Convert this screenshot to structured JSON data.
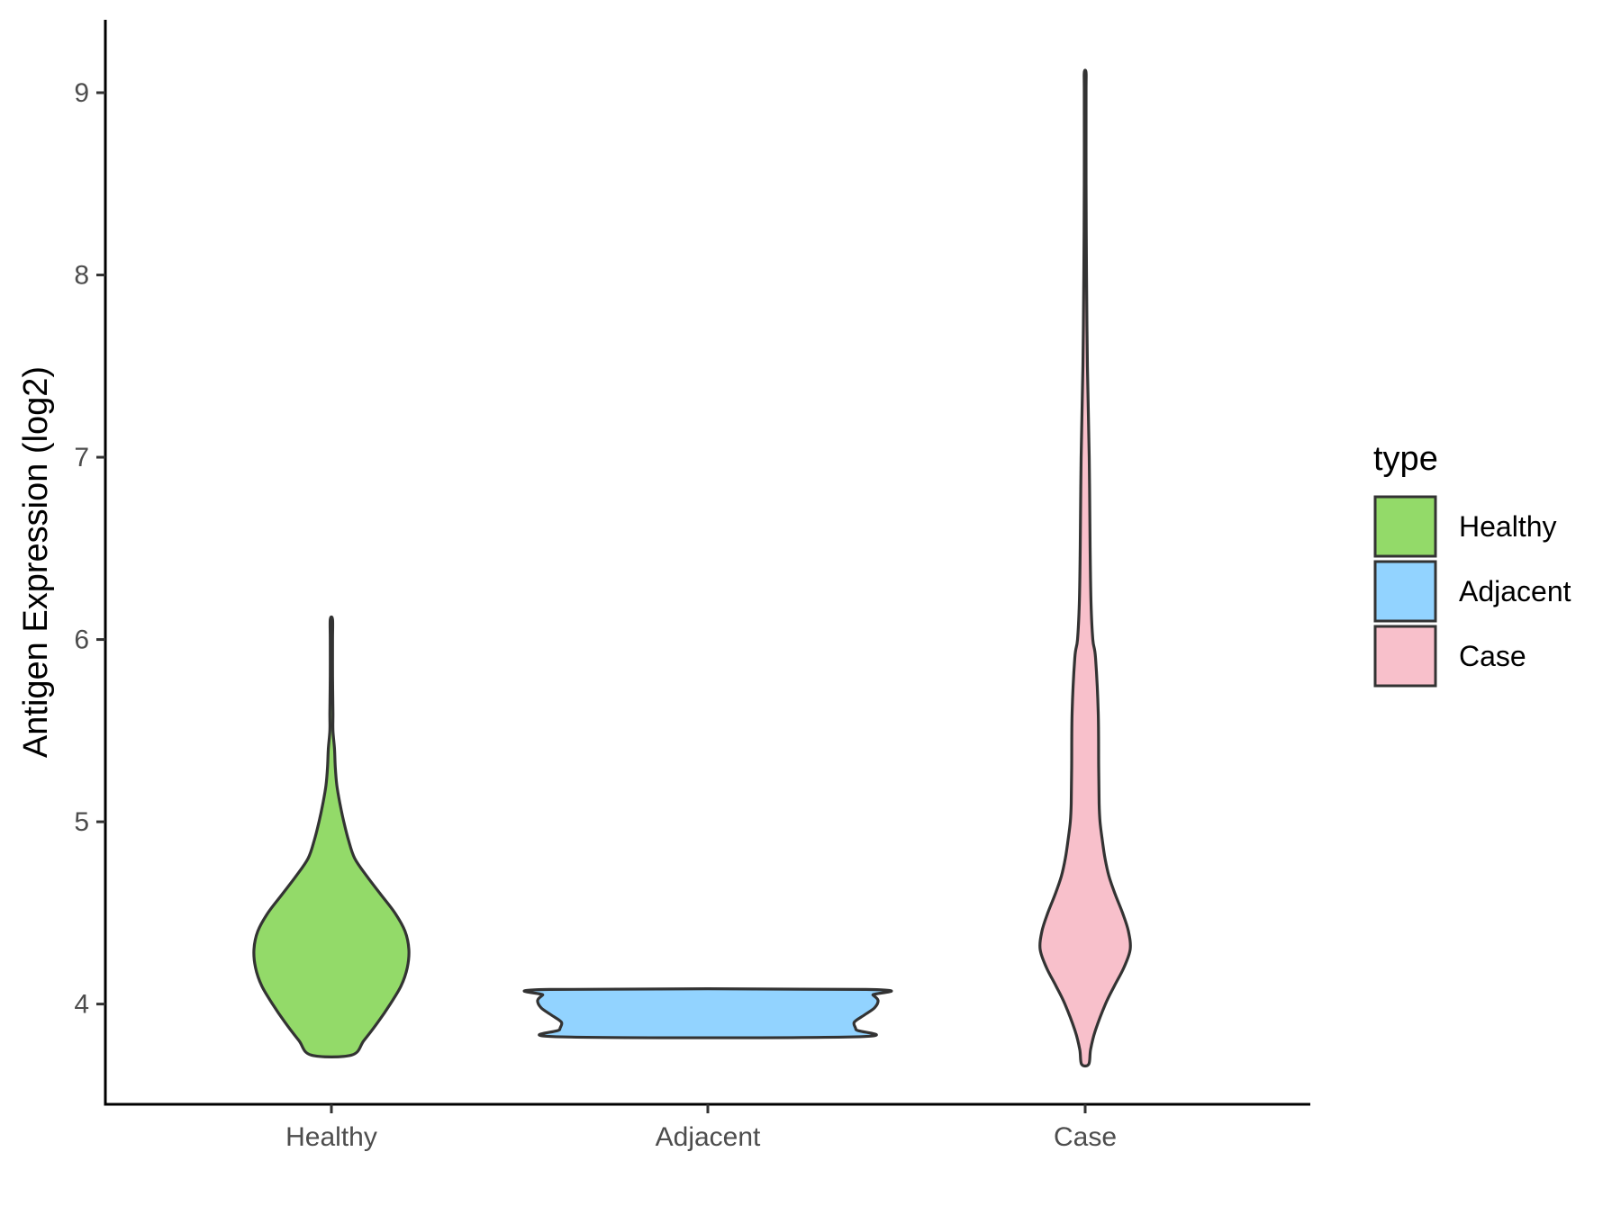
{
  "chart_data": {
    "type": "violin",
    "ylabel": "Antigen Expression (log2)",
    "xlabel": "",
    "ylim": [
      3.45,
      9.4
    ],
    "yticks": [
      4,
      5,
      6,
      7,
      8,
      9
    ],
    "categories": [
      "Healthy",
      "Adjacent",
      "Case"
    ],
    "grid": false,
    "legend": {
      "title": "type",
      "placement": "right",
      "entries": [
        {
          "label": "Healthy",
          "color": "#93DA69"
        },
        {
          "label": "Adjacent",
          "color": "#92D3FF"
        },
        {
          "label": "Case",
          "color": "#F8C0CB"
        }
      ]
    },
    "series": [
      {
        "category": "Healthy",
        "color": "#93DA69",
        "range": [
          3.72,
          6.11
        ],
        "density_profile": [
          [
            3.72,
            0.26
          ],
          [
            3.8,
            0.42
          ],
          [
            3.9,
            0.6
          ],
          [
            4.0,
            0.76
          ],
          [
            4.1,
            0.9
          ],
          [
            4.2,
            0.98
          ],
          [
            4.3,
            1.0
          ],
          [
            4.4,
            0.95
          ],
          [
            4.5,
            0.82
          ],
          [
            4.6,
            0.64
          ],
          [
            4.7,
            0.46
          ],
          [
            4.8,
            0.3
          ],
          [
            4.9,
            0.22
          ],
          [
            5.0,
            0.16
          ],
          [
            5.1,
            0.11
          ],
          [
            5.2,
            0.07
          ],
          [
            5.3,
            0.05
          ],
          [
            5.4,
            0.04
          ],
          [
            5.5,
            0.02
          ],
          [
            5.6,
            0.02
          ],
          [
            5.8,
            0.015
          ],
          [
            6.0,
            0.015
          ],
          [
            6.11,
            0.015
          ]
        ]
      },
      {
        "category": "Adjacent",
        "color": "#92D3FF",
        "range": [
          3.82,
          4.08
        ],
        "density_profile": [
          [
            3.82,
            0.86
          ],
          [
            3.86,
            0.87
          ],
          [
            3.9,
            0.86
          ],
          [
            3.94,
            0.92
          ],
          [
            3.98,
            0.98
          ],
          [
            4.02,
            1.0
          ],
          [
            4.05,
            0.97
          ],
          [
            4.08,
            0.93
          ]
        ]
      },
      {
        "category": "Case",
        "color": "#F8C0CB",
        "range": [
          3.67,
          9.11
        ],
        "density_profile": [
          [
            3.67,
            0.08
          ],
          [
            3.75,
            0.12
          ],
          [
            3.85,
            0.22
          ],
          [
            4.0,
            0.45
          ],
          [
            4.1,
            0.65
          ],
          [
            4.2,
            0.86
          ],
          [
            4.3,
            1.0
          ],
          [
            4.4,
            0.96
          ],
          [
            4.5,
            0.83
          ],
          [
            4.6,
            0.67
          ],
          [
            4.7,
            0.53
          ],
          [
            4.8,
            0.44
          ],
          [
            4.9,
            0.38
          ],
          [
            5.0,
            0.33
          ],
          [
            5.1,
            0.31
          ],
          [
            5.3,
            0.3
          ],
          [
            5.6,
            0.29
          ],
          [
            5.9,
            0.23
          ],
          [
            6.0,
            0.17
          ],
          [
            6.2,
            0.13
          ],
          [
            6.5,
            0.11
          ],
          [
            7.0,
            0.09
          ],
          [
            7.5,
            0.05
          ],
          [
            8.0,
            0.03
          ],
          [
            8.5,
            0.02
          ],
          [
            9.0,
            0.02
          ],
          [
            9.11,
            0.02
          ]
        ]
      }
    ]
  }
}
